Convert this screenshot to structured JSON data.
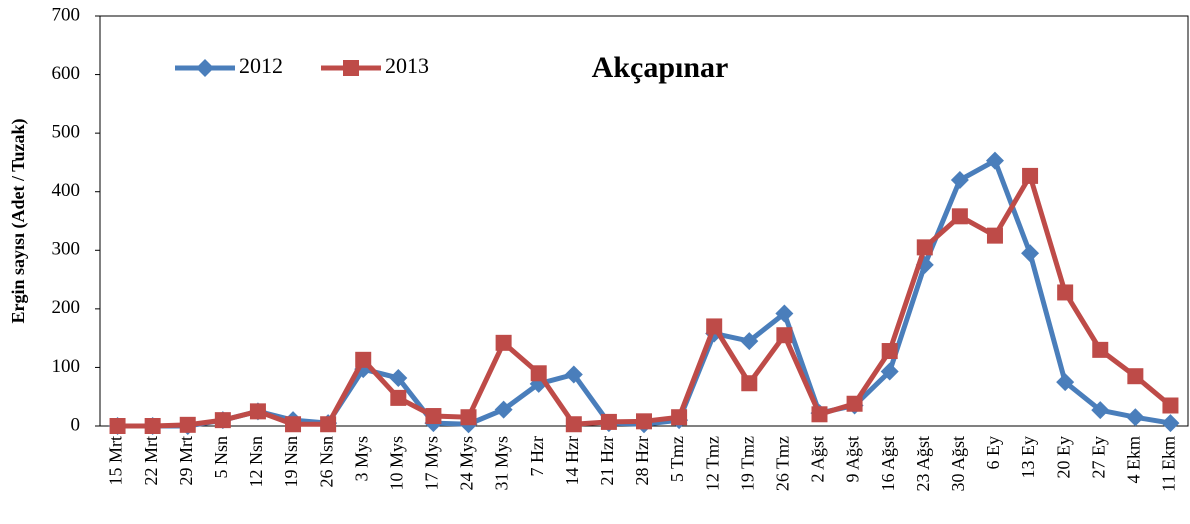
{
  "chart_data": {
    "type": "line",
    "title": "Akçapınar",
    "y_label": "Ergin sayısı (Adet / Tuzak)",
    "categories": [
      "15 Mrt",
      "22 Mrt",
      "29 Mrt",
      "5 Nsn",
      "12 Nsn",
      "19 Nsn",
      "26 Nsn",
      "3 Mys",
      "10 Mys",
      "17 Mys",
      "24 Mys",
      "31 Mys",
      "7 Hzr",
      "14 Hzr",
      "21 Hzr",
      "28 Hzr",
      "5 Tmz",
      "12 Tmz",
      "19 Tmz",
      "26 Tmz",
      "2 Ağst",
      "9 Ağst",
      "16 Ağst",
      "23 Ağst",
      "30 Ağst",
      "6 Ey",
      "13 Ey",
      "20 Ey",
      "27 Ey",
      "4 Ekm",
      "11 Ekm"
    ],
    "series": [
      {
        "name": "2012",
        "color": "#4a7ebb",
        "marker": "diamond",
        "values": [
          0,
          0,
          0,
          10,
          25,
          10,
          5,
          97,
          82,
          5,
          3,
          28,
          72,
          88,
          5,
          3,
          10,
          158,
          145,
          192,
          22,
          35,
          93,
          275,
          420,
          453,
          295,
          75,
          27,
          15,
          5
        ]
      },
      {
        "name": "2013",
        "color": "#be4b48",
        "marker": "square",
        "values": [
          0,
          0,
          2,
          10,
          25,
          3,
          3,
          113,
          48,
          17,
          15,
          142,
          90,
          3,
          7,
          8,
          15,
          170,
          73,
          155,
          20,
          38,
          128,
          305,
          358,
          325,
          427,
          228,
          130,
          85,
          35
        ]
      }
    ],
    "ylim": [
      0,
      700
    ],
    "yticks": [
      0,
      100,
      200,
      300,
      400,
      500,
      600,
      700
    ],
    "grid": false
  }
}
